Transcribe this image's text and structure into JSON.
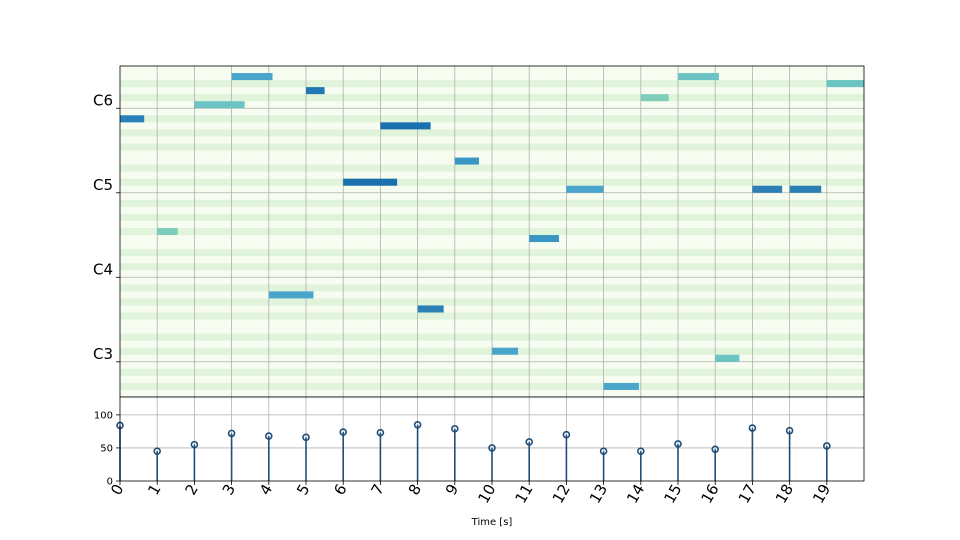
{
  "chart_data": [
    {
      "type": "piano-roll",
      "xlim": [
        0,
        20
      ],
      "ylim_midi": [
        43,
        89
      ],
      "y_ticks": [
        {
          "midi": 48,
          "label": "C3"
        },
        {
          "midi": 60,
          "label": "C4"
        },
        {
          "midi": 72,
          "label": "C5"
        },
        {
          "midi": 84,
          "label": "C6"
        }
      ],
      "grid": true,
      "notes": [
        {
          "start": 0.0,
          "end": 0.65,
          "pitch": 82,
          "color": "#2980b9"
        },
        {
          "start": 1.0,
          "end": 1.55,
          "pitch": 66,
          "color": "#7ecdbb"
        },
        {
          "start": 2.0,
          "end": 3.35,
          "pitch": 84,
          "color": "#6cc3c3"
        },
        {
          "start": 3.0,
          "end": 4.1,
          "pitch": 88,
          "color": "#4aa5cc"
        },
        {
          "start": 4.0,
          "end": 5.2,
          "pitch": 57,
          "color": "#4aa5cc"
        },
        {
          "start": 5.0,
          "end": 5.5,
          "pitch": 86,
          "color": "#1f78b4"
        },
        {
          "start": 6.0,
          "end": 7.45,
          "pitch": 73,
          "color": "#1a6fae"
        },
        {
          "start": 7.0,
          "end": 8.35,
          "pitch": 81,
          "color": "#1a6fae"
        },
        {
          "start": 8.0,
          "end": 8.7,
          "pitch": 55,
          "color": "#2b7fb4"
        },
        {
          "start": 9.0,
          "end": 9.65,
          "pitch": 76,
          "color": "#3b96c3"
        },
        {
          "start": 10.0,
          "end": 10.7,
          "pitch": 49,
          "color": "#4aa5cc"
        },
        {
          "start": 11.0,
          "end": 11.8,
          "pitch": 65,
          "color": "#3b96c3"
        },
        {
          "start": 12.0,
          "end": 13.0,
          "pitch": 72,
          "color": "#4aa5cc"
        },
        {
          "start": 13.0,
          "end": 13.95,
          "pitch": 44,
          "color": "#4aa5cc"
        },
        {
          "start": 14.0,
          "end": 14.75,
          "pitch": 85,
          "color": "#7ecdbb"
        },
        {
          "start": 15.0,
          "end": 16.1,
          "pitch": 88,
          "color": "#6cc3c3"
        },
        {
          "start": 16.0,
          "end": 16.65,
          "pitch": 48,
          "color": "#6cc3c3"
        },
        {
          "start": 17.0,
          "end": 17.8,
          "pitch": 72,
          "color": "#2b7fb4"
        },
        {
          "start": 18.0,
          "end": 18.85,
          "pitch": 72,
          "color": "#2b7fb4"
        },
        {
          "start": 19.0,
          "end": 20.0,
          "pitch": 87,
          "color": "#6cc3c3"
        }
      ],
      "colors": {
        "background": "#f7fcf0",
        "stripe": "#e0f3db",
        "grid": "#b0b0b0"
      }
    },
    {
      "type": "stem",
      "xlabel": "Time [s]",
      "x_ticks": [
        "0",
        "1",
        "2",
        "3",
        "4",
        "5",
        "6",
        "7",
        "8",
        "9",
        "10",
        "11",
        "12",
        "13",
        "14",
        "15",
        "16",
        "17",
        "18",
        "19"
      ],
      "y_ticks": [
        "0",
        "50",
        "100"
      ],
      "ylim": [
        0,
        127
      ],
      "xlim": [
        0,
        20
      ],
      "x": [
        0,
        1,
        2,
        3,
        4,
        5,
        6,
        7,
        8,
        9,
        10,
        11,
        12,
        13,
        14,
        15,
        16,
        17,
        18,
        19
      ],
      "values": [
        84,
        45,
        55,
        72,
        68,
        66,
        74,
        73,
        85,
        79,
        50,
        59,
        70,
        45,
        45,
        56,
        48,
        80,
        76,
        53
      ],
      "color": "#1f4e79",
      "grid": true
    }
  ]
}
